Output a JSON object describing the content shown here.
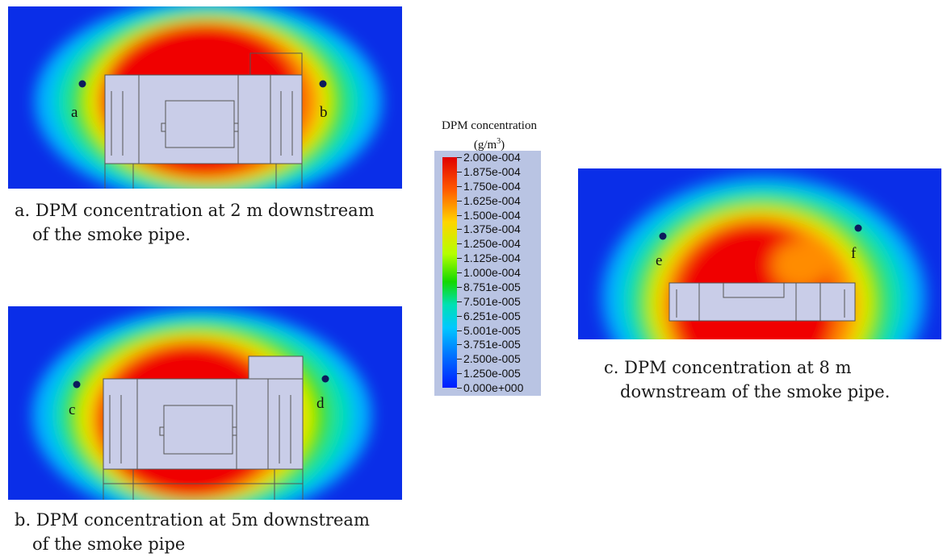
{
  "legend": {
    "title": "DPM concentration",
    "unit_base": "(g/m",
    "unit_exp": "3",
    "unit_close": ")",
    "labels": [
      "2.000e-004",
      "1.875e-004",
      "1.750e-004",
      "1.625e-004",
      "1.500e-004",
      "1.375e-004",
      "1.250e-004",
      "1.125e-004",
      "1.000e-004",
      "8.751e-005",
      "7.501e-005",
      "6.251e-005",
      "5.001e-005",
      "3.751e-005",
      "2.500e-005",
      "1.250e-005",
      "0.000e+000"
    ]
  },
  "panels": {
    "a": {
      "caption_line1": "a. DPM concentration at 2 m downstream",
      "caption_line2": "of the smoke pipe.",
      "point_left": "a",
      "point_right": "b"
    },
    "b": {
      "caption_line1": "b. DPM concentration at 5m downstream",
      "caption_line2": "of the smoke pipe",
      "point_left": "c",
      "point_right": "d"
    },
    "c": {
      "caption_line1": "c. DPM concentration at 8 m",
      "caption_line2": "downstream of the smoke pipe.",
      "point_left": "e",
      "point_right": "f"
    }
  },
  "colors": {
    "background_field": "#0a2ee8",
    "vehicle_fill": "#c9cde8",
    "point_marker": "#0c1a5c"
  }
}
